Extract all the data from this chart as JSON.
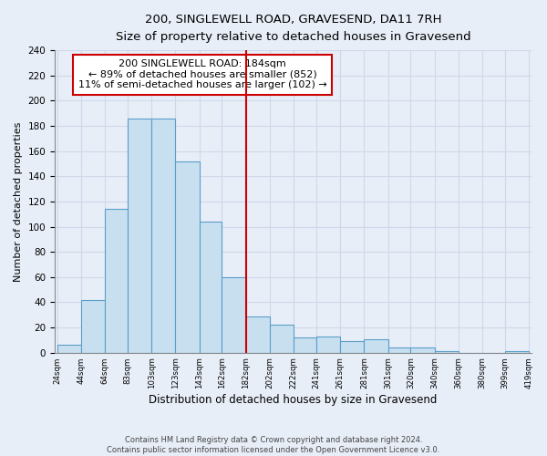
{
  "title": "200, SINGLEWELL ROAD, GRAVESEND, DA11 7RH",
  "subtitle": "Size of property relative to detached houses in Gravesend",
  "xlabel": "Distribution of detached houses by size in Gravesend",
  "ylabel": "Number of detached properties",
  "bar_color": "#c8dff0",
  "bar_edge_color": "#5a9ec9",
  "background_color": "#e8eef8",
  "grid_color": "#d0d8e8",
  "bins": [
    24,
    44,
    64,
    83,
    103,
    123,
    143,
    162,
    182,
    202,
    222,
    241,
    261,
    281,
    301,
    320,
    340,
    360,
    380,
    399,
    419
  ],
  "counts": [
    6,
    42,
    114,
    186,
    186,
    152,
    104,
    60,
    29,
    22,
    12,
    13,
    9,
    11,
    4,
    4,
    1,
    0,
    0,
    1
  ],
  "vline_x": 182,
  "vline_color": "#cc0000",
  "annotation_line1": "200 SINGLEWELL ROAD: 184sqm",
  "annotation_line2": "← 89% of detached houses are smaller (852)",
  "annotation_line3": "11% of semi-detached houses are larger (102) →",
  "annotation_box_color": "white",
  "annotation_box_edge_color": "#cc0000",
  "ylim": [
    0,
    240
  ],
  "yticks": [
    0,
    20,
    40,
    60,
    80,
    100,
    120,
    140,
    160,
    180,
    200,
    220,
    240
  ],
  "footer_line1": "Contains HM Land Registry data © Crown copyright and database right 2024.",
  "footer_line2": "Contains public sector information licensed under the Open Government Licence v3.0.",
  "tick_labels": [
    "24sqm",
    "44sqm",
    "64sqm",
    "83sqm",
    "103sqm",
    "123sqm",
    "143sqm",
    "162sqm",
    "182sqm",
    "202sqm",
    "222sqm",
    "241sqm",
    "261sqm",
    "281sqm",
    "301sqm",
    "320sqm",
    "340sqm",
    "360sqm",
    "380sqm",
    "399sqm",
    "419sqm"
  ]
}
